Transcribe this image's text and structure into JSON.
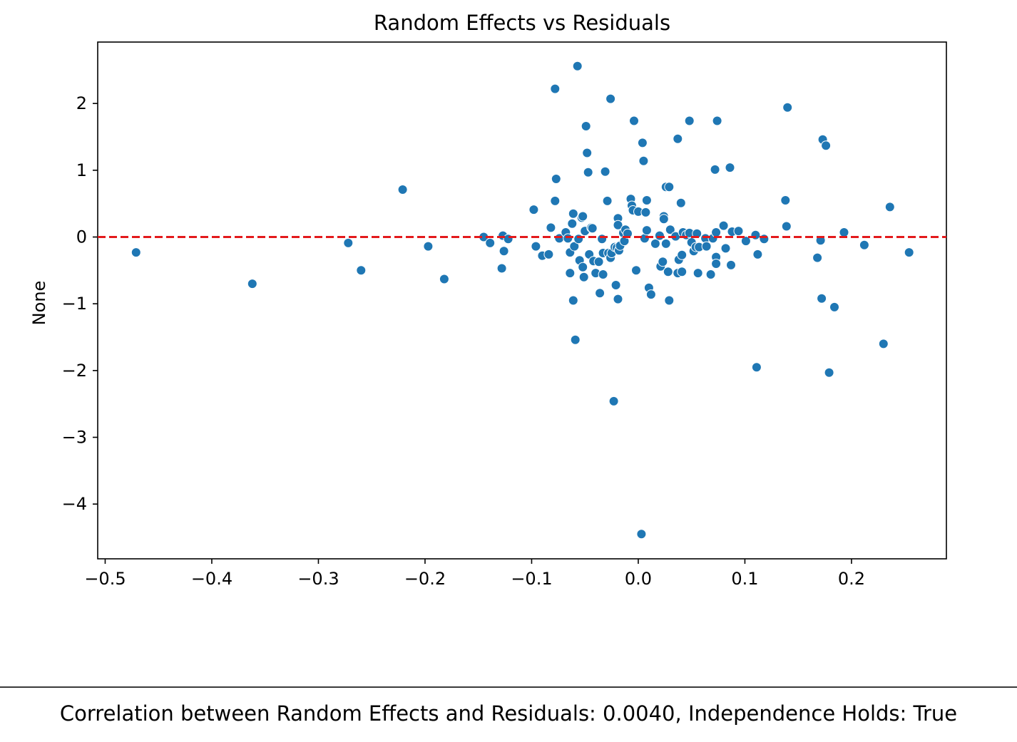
{
  "chart_data": {
    "type": "scatter",
    "title": "Random Effects vs Residuals",
    "xlabel": "",
    "ylabel": "None",
    "xlim": [
      -0.507,
      0.289
    ],
    "ylim": [
      -4.82,
      2.92
    ],
    "xticks": [
      {
        "value": -0.5,
        "label": "−0.5"
      },
      {
        "value": -0.4,
        "label": "−0.4"
      },
      {
        "value": -0.3,
        "label": "−0.3"
      },
      {
        "value": -0.2,
        "label": "−0.2"
      },
      {
        "value": -0.1,
        "label": "−0.1"
      },
      {
        "value": 0.0,
        "label": "0.0"
      },
      {
        "value": 0.1,
        "label": "0.1"
      },
      {
        "value": 0.2,
        "label": "0.2"
      }
    ],
    "yticks": [
      {
        "value": 2,
        "label": "2"
      },
      {
        "value": 1,
        "label": "1"
      },
      {
        "value": 0,
        "label": "0"
      },
      {
        "value": -1,
        "label": "−1"
      },
      {
        "value": -2,
        "label": "−2"
      },
      {
        "value": -3,
        "label": "−3"
      },
      {
        "value": -4,
        "label": "−4"
      }
    ],
    "grid": false,
    "point_color": "#1f77b4",
    "reference_line": {
      "y": 0,
      "color": "#e31a1c",
      "style": "dashed"
    },
    "points": [
      [
        -0.471,
        -0.23
      ],
      [
        -0.362,
        -0.7
      ],
      [
        -0.272,
        -0.09
      ],
      [
        -0.26,
        -0.5
      ],
      [
        -0.221,
        0.71
      ],
      [
        -0.197,
        -0.14
      ],
      [
        -0.182,
        -0.63
      ],
      [
        -0.145,
        0.0
      ],
      [
        -0.139,
        -0.09
      ],
      [
        -0.128,
        -0.47
      ],
      [
        -0.127,
        0.02
      ],
      [
        -0.126,
        -0.21
      ],
      [
        -0.122,
        -0.03
      ],
      [
        -0.098,
        0.41
      ],
      [
        -0.096,
        -0.14
      ],
      [
        -0.09,
        -0.28
      ],
      [
        -0.084,
        -0.26
      ],
      [
        -0.082,
        0.14
      ],
      [
        -0.078,
        0.54
      ],
      [
        -0.077,
        0.87
      ],
      [
        -0.078,
        2.22
      ],
      [
        -0.074,
        -0.02
      ],
      [
        -0.068,
        0.07
      ],
      [
        -0.066,
        -0.02
      ],
      [
        -0.064,
        -0.23
      ],
      [
        -0.064,
        -0.54
      ],
      [
        -0.062,
        0.2
      ],
      [
        -0.061,
        0.35
      ],
      [
        -0.061,
        -0.95
      ],
      [
        -0.06,
        -0.14
      ],
      [
        -0.059,
        -1.54
      ],
      [
        -0.057,
        2.56
      ],
      [
        -0.056,
        -0.03
      ],
      [
        -0.055,
        -0.35
      ],
      [
        -0.053,
        0.29
      ],
      [
        -0.052,
        0.31
      ],
      [
        -0.052,
        -0.45
      ],
      [
        -0.051,
        -0.6
      ],
      [
        -0.05,
        0.09
      ],
      [
        -0.049,
        1.66
      ],
      [
        -0.048,
        1.26
      ],
      [
        -0.047,
        0.97
      ],
      [
        -0.046,
        -0.26
      ],
      [
        -0.044,
        0.14
      ],
      [
        -0.043,
        0.13
      ],
      [
        -0.042,
        -0.36
      ],
      [
        -0.04,
        -0.54
      ],
      [
        -0.037,
        -0.37
      ],
      [
        -0.036,
        -0.84
      ],
      [
        -0.034,
        -0.03
      ],
      [
        -0.033,
        -0.24
      ],
      [
        -0.033,
        -0.56
      ],
      [
        -0.031,
        0.98
      ],
      [
        -0.029,
        0.54
      ],
      [
        -0.028,
        -0.24
      ],
      [
        -0.026,
        2.07
      ],
      [
        -0.026,
        -0.31
      ],
      [
        -0.025,
        -0.24
      ],
      [
        -0.023,
        -2.46
      ],
      [
        -0.022,
        -0.15
      ],
      [
        -0.021,
        -0.72
      ],
      [
        -0.02,
        -0.16
      ],
      [
        -0.019,
        0.28
      ],
      [
        -0.019,
        0.18
      ],
      [
        -0.019,
        -0.93
      ],
      [
        -0.018,
        -0.2
      ],
      [
        -0.017,
        -0.13
      ],
      [
        -0.014,
        0.06
      ],
      [
        -0.013,
        -0.06
      ],
      [
        -0.012,
        0.11
      ],
      [
        -0.01,
        0.05
      ],
      [
        -0.007,
        0.57
      ],
      [
        -0.006,
        0.47
      ],
      [
        -0.005,
        0.4
      ],
      [
        -0.004,
        1.74
      ],
      [
        -0.002,
        -0.5
      ],
      [
        0.0,
        0.38
      ],
      [
        0.003,
        -4.45
      ],
      [
        0.004,
        1.41
      ],
      [
        0.005,
        1.14
      ],
      [
        0.006,
        -0.02
      ],
      [
        0.007,
        0.37
      ],
      [
        0.008,
        0.55
      ],
      [
        0.008,
        0.1
      ],
      [
        0.01,
        -0.76
      ],
      [
        0.012,
        -0.86
      ],
      [
        0.016,
        -0.1
      ],
      [
        0.02,
        0.02
      ],
      [
        0.021,
        -0.44
      ],
      [
        0.023,
        -0.37
      ],
      [
        0.024,
        0.31
      ],
      [
        0.024,
        0.27
      ],
      [
        0.026,
        0.75
      ],
      [
        0.026,
        -0.1
      ],
      [
        0.028,
        -0.52
      ],
      [
        0.029,
        0.75
      ],
      [
        0.029,
        -0.95
      ],
      [
        0.03,
        0.11
      ],
      [
        0.035,
        0.01
      ],
      [
        0.037,
        1.47
      ],
      [
        0.037,
        -0.54
      ],
      [
        0.038,
        -0.34
      ],
      [
        0.04,
        0.51
      ],
      [
        0.041,
        -0.27
      ],
      [
        0.041,
        -0.52
      ],
      [
        0.042,
        0.07
      ],
      [
        0.045,
        0.03
      ],
      [
        0.048,
        1.74
      ],
      [
        0.048,
        0.06
      ],
      [
        0.05,
        -0.08
      ],
      [
        0.052,
        -0.21
      ],
      [
        0.054,
        -0.15
      ],
      [
        0.055,
        0.05
      ],
      [
        0.056,
        -0.54
      ],
      [
        0.057,
        -0.15
      ],
      [
        0.063,
        -0.02
      ],
      [
        0.064,
        -0.14
      ],
      [
        0.068,
        -0.56
      ],
      [
        0.07,
        -0.02
      ],
      [
        0.072,
        1.01
      ],
      [
        0.073,
        0.07
      ],
      [
        0.073,
        -0.3
      ],
      [
        0.073,
        -0.4
      ],
      [
        0.074,
        1.74
      ],
      [
        0.08,
        0.17
      ],
      [
        0.082,
        -0.17
      ],
      [
        0.086,
        1.04
      ],
      [
        0.087,
        -0.42
      ],
      [
        0.088,
        0.08
      ],
      [
        0.094,
        0.09
      ],
      [
        0.101,
        -0.06
      ],
      [
        0.11,
        0.03
      ],
      [
        0.111,
        -1.95
      ],
      [
        0.112,
        -0.26
      ],
      [
        0.118,
        -0.03
      ],
      [
        0.138,
        0.55
      ],
      [
        0.139,
        0.16
      ],
      [
        0.14,
        1.94
      ],
      [
        0.168,
        -0.31
      ],
      [
        0.171,
        -0.05
      ],
      [
        0.172,
        -0.92
      ],
      [
        0.173,
        1.46
      ],
      [
        0.176,
        1.37
      ],
      [
        0.179,
        -2.03
      ],
      [
        0.184,
        -1.05
      ],
      [
        0.193,
        0.07
      ],
      [
        0.212,
        -0.12
      ],
      [
        0.23,
        -1.6
      ],
      [
        0.236,
        0.45
      ],
      [
        0.254,
        -0.23
      ]
    ]
  },
  "footer": {
    "caption": "Correlation between Random Effects and Residuals: 0.0040, Independence Holds: True"
  }
}
